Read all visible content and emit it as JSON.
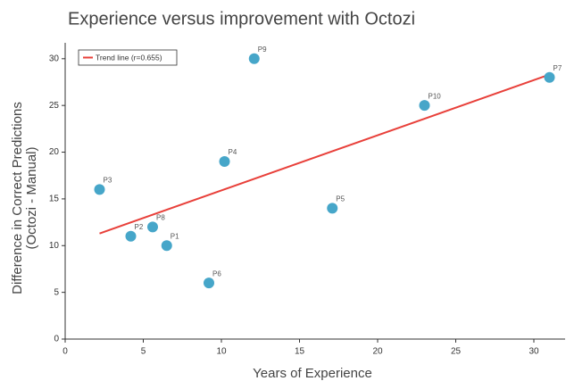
{
  "chart_data": {
    "type": "scatter",
    "title": "Experience versus improvement with Octozi",
    "x_label": "Years of Experience",
    "y_label": [
      "Difference in Correct Predictions",
      "(Octozi - Manual)"
    ],
    "points": {
      "color": "#46a6c9",
      "labels": [
        "P1",
        "P2",
        "P3",
        "P4",
        "P5",
        "P6",
        "P7",
        "P8",
        "P9",
        "P10"
      ],
      "x": [
        6.5,
        4.2,
        2.2,
        10.2,
        17.1,
        9.2,
        31,
        5.6,
        12.1,
        23
      ],
      "values": [
        10,
        11,
        16,
        19,
        14,
        6,
        28,
        12,
        30,
        25
      ]
    },
    "trend": {
      "name": "Trend line (r=0.655)",
      "color": "#e8403a",
      "x": [
        2.2,
        31
      ],
      "values": [
        11.3,
        28.3
      ]
    },
    "xlim": [
      0,
      32
    ],
    "xticks": [
      0,
      5,
      10,
      15,
      20,
      25,
      30
    ],
    "ylim": [
      0,
      31.7
    ],
    "yticks": [
      0,
      5,
      10,
      15,
      20,
      25,
      30
    ],
    "legend": "upper left"
  }
}
